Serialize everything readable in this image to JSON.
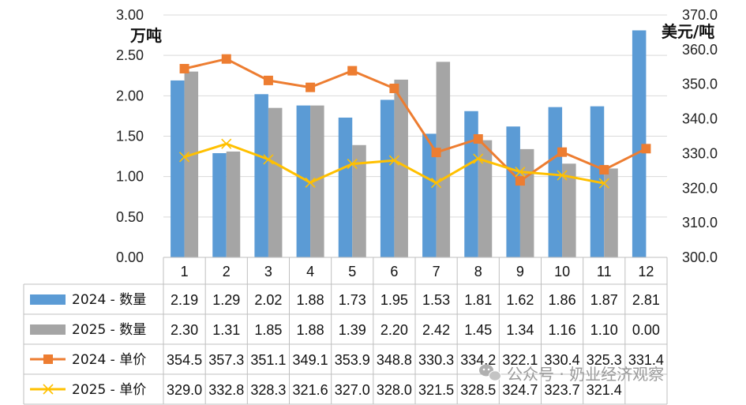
{
  "chart_data": {
    "type": "bar+line",
    "categories": [
      "1",
      "2",
      "3",
      "4",
      "5",
      "6",
      "7",
      "8",
      "9",
      "10",
      "11",
      "12"
    ],
    "left_axis": {
      "label": "万吨",
      "range": [
        0,
        3.0
      ],
      "ticks": [
        "0.00",
        "0.50",
        "1.00",
        "1.50",
        "2.00",
        "2.50",
        "3.00"
      ]
    },
    "right_axis": {
      "label": "美元/吨",
      "range": [
        300,
        370
      ],
      "ticks": [
        "300.0",
        "310.0",
        "320.0",
        "330.0",
        "340.0",
        "350.0",
        "360.0",
        "370.0"
      ]
    },
    "series": [
      {
        "name": "2024 - 数量",
        "kind": "bar",
        "axis": "left",
        "color": "#5b9bd5",
        "values": [
          2.19,
          1.29,
          2.02,
          1.88,
          1.73,
          1.95,
          1.53,
          1.81,
          1.62,
          1.86,
          1.87,
          2.81
        ],
        "table": [
          "2.19",
          "1.29",
          "2.02",
          "1.88",
          "1.73",
          "1.95",
          "1.53",
          "1.81",
          "1.62",
          "1.86",
          "1.87",
          "2.81"
        ]
      },
      {
        "name": "2025 - 数量",
        "kind": "bar",
        "axis": "left",
        "color": "#a5a5a5",
        "values": [
          2.3,
          1.31,
          1.85,
          1.88,
          1.39,
          2.2,
          2.42,
          1.45,
          1.34,
          1.16,
          1.1,
          0.0
        ],
        "table": [
          "2.30",
          "1.31",
          "1.85",
          "1.88",
          "1.39",
          "2.20",
          "2.42",
          "1.45",
          "1.34",
          "1.16",
          "1.10",
          "0.00"
        ]
      },
      {
        "name": "2024 - 单价",
        "kind": "line",
        "axis": "right",
        "color": "#ed7d31",
        "marker": "square",
        "values": [
          354.5,
          357.3,
          351.1,
          349.1,
          353.9,
          348.8,
          330.3,
          334.2,
          322.1,
          330.4,
          325.3,
          331.4
        ],
        "table": [
          "354.5",
          "357.3",
          "351.1",
          "349.1",
          "353.9",
          "348.8",
          "330.3",
          "334.2",
          "322.1",
          "330.4",
          "325.3",
          "331.4"
        ]
      },
      {
        "name": "2025 - 单价",
        "kind": "line",
        "axis": "right",
        "color": "#ffc000",
        "marker": "x",
        "values": [
          329.0,
          332.8,
          328.3,
          321.6,
          327.0,
          328.0,
          321.5,
          328.5,
          324.7,
          323.7,
          321.4,
          null
        ],
        "table": [
          "329.0",
          "332.8",
          "328.3",
          "321.6",
          "327.0",
          "328.0",
          "321.5",
          "328.5",
          "324.7",
          "323.7",
          "321.4",
          ""
        ]
      }
    ]
  },
  "watermark": {
    "icon": "wechat-icon",
    "text": "公众号 · 奶业经济观察"
  }
}
